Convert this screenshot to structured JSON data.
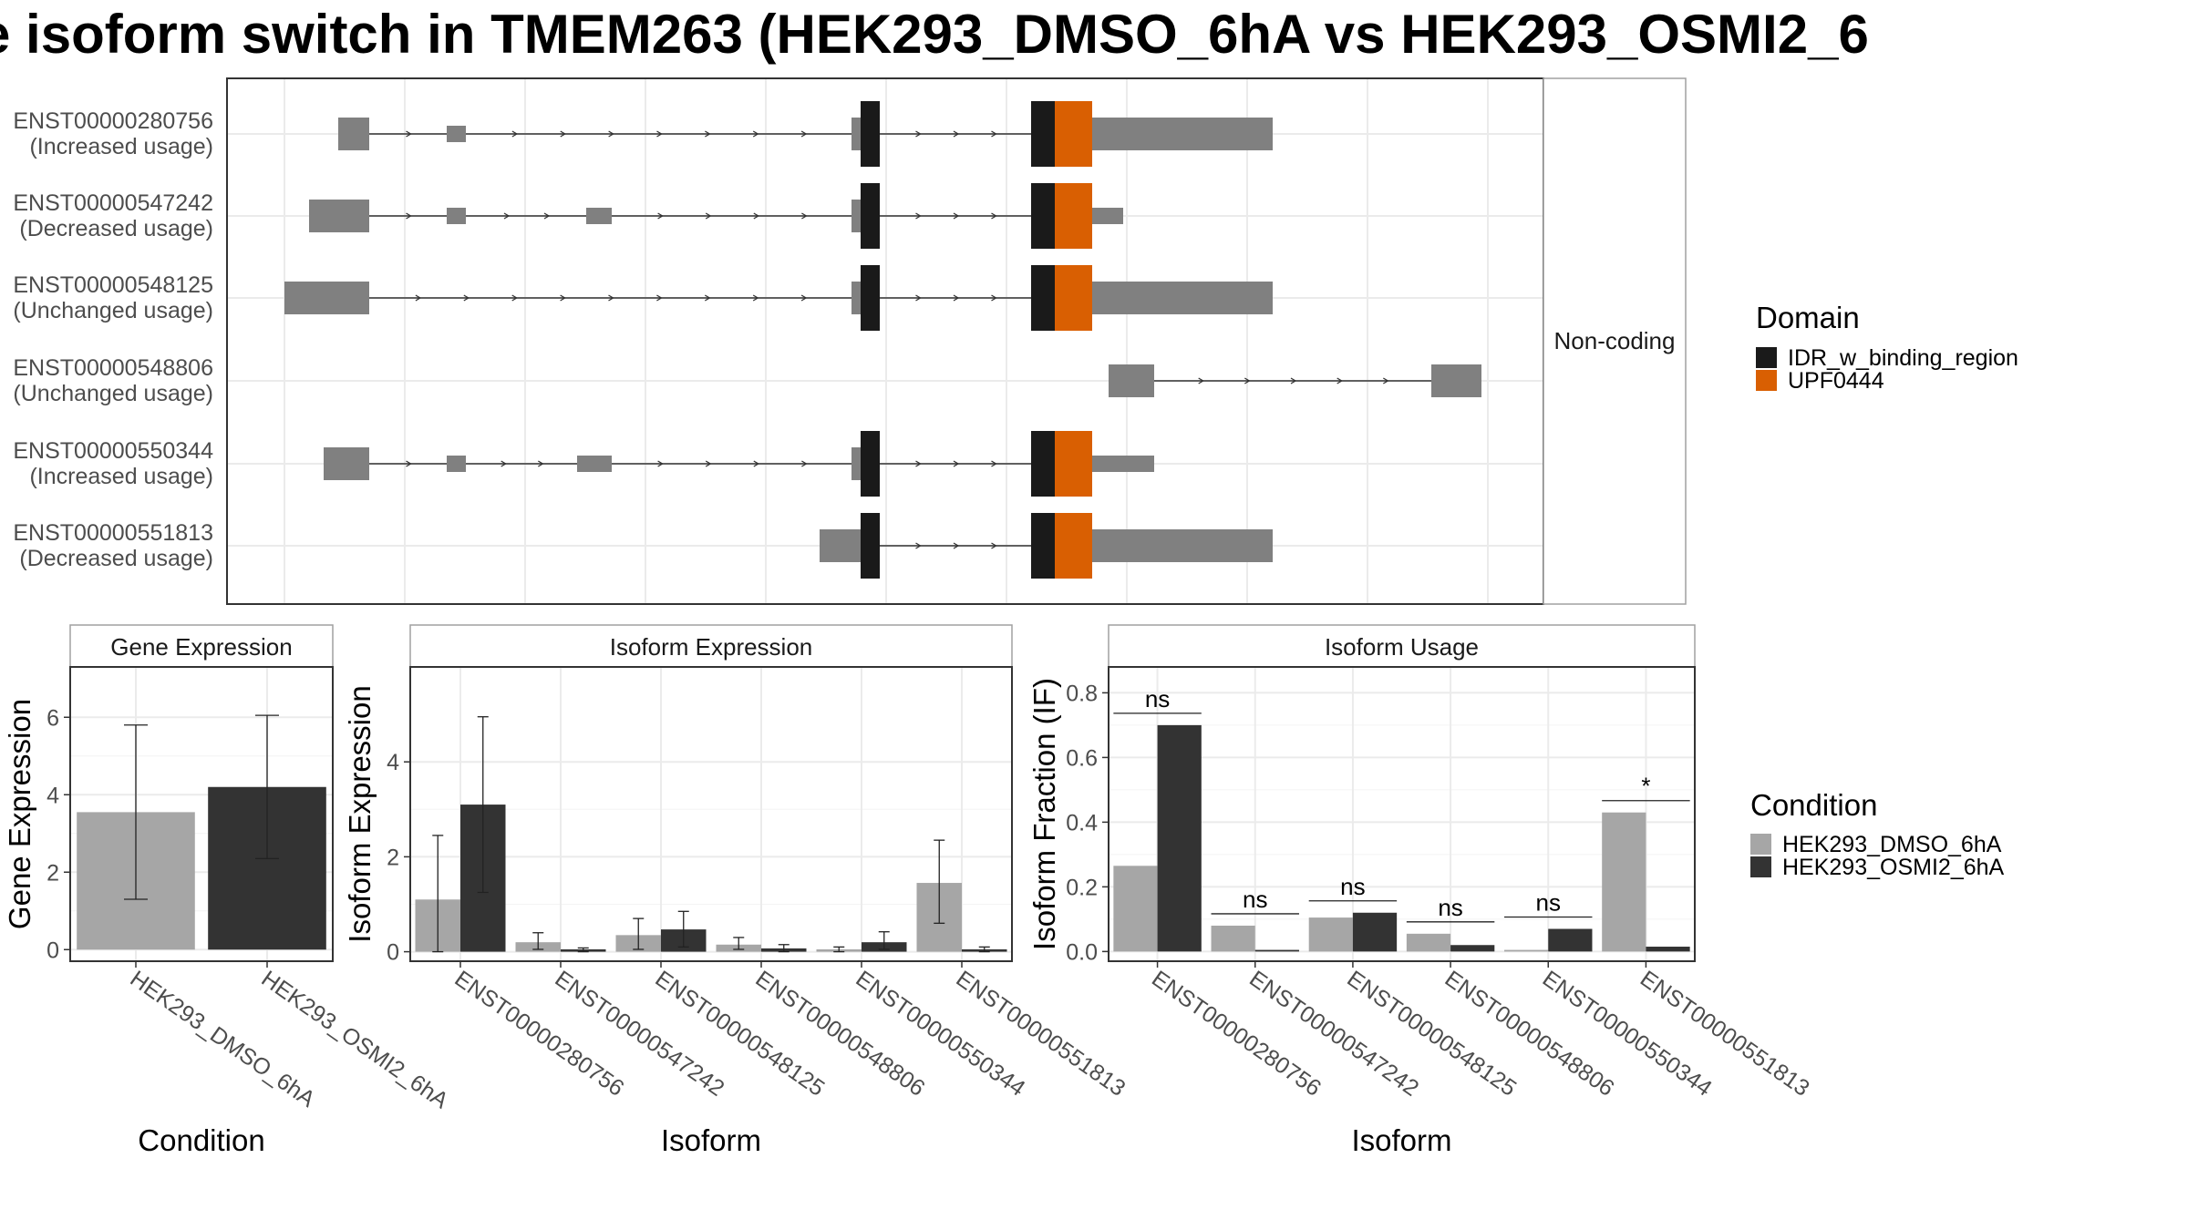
{
  "title": "e isoform switch in TMEM263 (HEK293_DMSO_6hA vs HEK293_OSMI2_6",
  "colors": {
    "exon": "#808080",
    "domain_IDR": "#1a1a1a",
    "domain_UPF": "#d95f02",
    "cond1": "#a6a6a6",
    "cond2": "#333333",
    "grid": "#ebebeb",
    "panel_border": "#333333",
    "strip_border": "#a0a0a0"
  },
  "structure": {
    "facet_label": "Non-coding",
    "transcripts": [
      {
        "id": "ENST00000280756",
        "usage": "(Increased usage)"
      },
      {
        "id": "ENST00000547242",
        "usage": "(Decreased usage)"
      },
      {
        "id": "ENST00000548125",
        "usage": "(Unchanged usage)"
      },
      {
        "id": "ENST00000548806",
        "usage": "(Unchanged usage)"
      },
      {
        "id": "ENST00000550344",
        "usage": "(Increased usage)"
      },
      {
        "id": "ENST00000551813",
        "usage": "(Decreased usage)"
      }
    ],
    "domain_legend": {
      "title": "Domain",
      "items": [
        {
          "label": "IDR_w_binding_region",
          "color": "#1a1a1a"
        },
        {
          "label": "UPF0444",
          "color": "#d95f02"
        }
      ]
    }
  },
  "condition_legend": {
    "title": "Condition",
    "items": [
      {
        "label": "HEK293_DMSO_6hA",
        "color": "#a6a6a6"
      },
      {
        "label": "HEK293_OSMI2_6hA",
        "color": "#333333"
      }
    ]
  },
  "chart_data": [
    {
      "type": "bar",
      "title": "Gene Expression",
      "xlabel": "Condition",
      "ylabel": "Gene Expression",
      "categories": [
        "HEK293_DMSO_6hA",
        "HEK293_OSMI2_6hA"
      ],
      "values": [
        3.55,
        4.2
      ],
      "error_low": [
        1.3,
        2.35
      ],
      "error_high": [
        5.8,
        6.05
      ],
      "ylim": [
        -0.3,
        7.3
      ],
      "yticks": [
        0,
        2,
        4,
        6
      ],
      "tick_labels": [
        "0",
        "2",
        "4",
        "6"
      ],
      "grid": true
    },
    {
      "type": "bar",
      "title": "Isoform Expression",
      "xlabel": "Isoform",
      "ylabel": "Isoform Expression",
      "categories": [
        "ENST00000280756",
        "ENST00000547242",
        "ENST00000548125",
        "ENST00000548806",
        "ENST00000550344",
        "ENST00000551813"
      ],
      "series": [
        {
          "name": "HEK293_DMSO_6hA",
          "values": [
            1.1,
            0.2,
            0.35,
            0.15,
            0.05,
            1.45
          ],
          "error_low": [
            0.0,
            0.05,
            0.05,
            0.05,
            0.0,
            0.6
          ],
          "error_high": [
            2.45,
            0.4,
            0.7,
            0.3,
            0.1,
            2.35
          ]
        },
        {
          "name": "HEK293_OSMI2_6hA",
          "values": [
            3.1,
            0.05,
            0.47,
            0.07,
            0.2,
            0.05
          ],
          "error_low": [
            1.25,
            0.0,
            0.1,
            0.0,
            0.05,
            0.0
          ],
          "error_high": [
            4.95,
            0.08,
            0.85,
            0.15,
            0.42,
            0.1
          ]
        }
      ],
      "ylim": [
        -0.2,
        6.0
      ],
      "yticks": [
        0,
        2,
        4
      ],
      "tick_labels": [
        "0",
        "2",
        "4"
      ],
      "grid": true
    },
    {
      "type": "bar",
      "title": "Isoform Usage",
      "xlabel": "Isoform",
      "ylabel": "Isoform Fraction (IF)",
      "categories": [
        "ENST00000280756",
        "ENST00000547242",
        "ENST00000548125",
        "ENST00000548806",
        "ENST00000550344",
        "ENST00000551813"
      ],
      "series": [
        {
          "name": "HEK293_DMSO_6hA",
          "values": [
            0.265,
            0.08,
            0.105,
            0.055,
            0.005,
            0.43
          ]
        },
        {
          "name": "HEK293_OSMI2_6hA",
          "values": [
            0.7,
            0.005,
            0.12,
            0.02,
            0.07,
            0.015
          ]
        }
      ],
      "significance": [
        "ns",
        "ns",
        "ns",
        "ns",
        "ns",
        "*"
      ],
      "ylim": [
        -0.03,
        0.88
      ],
      "yticks": [
        0.0,
        0.2,
        0.4,
        0.6,
        0.8
      ],
      "tick_labels": [
        "0.0",
        "0.2",
        "0.4",
        "0.6",
        "0.8"
      ],
      "grid": true
    }
  ]
}
